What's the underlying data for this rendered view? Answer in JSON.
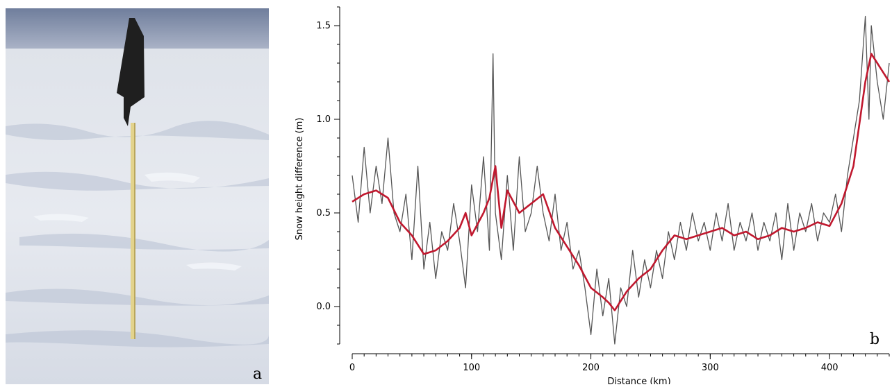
{
  "panels": {
    "a_label": "a",
    "b_label": "b"
  },
  "colors": {
    "raw_line": "#555555",
    "smooth_line": "#c0182e",
    "sky": "#7d8ba6",
    "snow": "#e4e8ef",
    "flag": "#1f1f1f",
    "pole": "#e3d38c"
  },
  "chart_data": {
    "type": "line",
    "title": "",
    "xlabel": "Distance (km)",
    "ylabel": "Snow height difference (m)",
    "xlim": [
      0,
      450
    ],
    "ylim": [
      -0.2,
      1.6
    ],
    "xticks": [
      0,
      100,
      200,
      300,
      400
    ],
    "yticks": [
      0.0,
      0.5,
      1.0,
      1.5
    ],
    "ytick_labels": [
      "0.0",
      "0.5",
      "1.0",
      "1.5"
    ],
    "x_minor_tick_step": 10,
    "y_minor_tick_step": 0.1,
    "grid": false,
    "series": [
      {
        "style": "raw",
        "x": [
          0,
          5,
          10,
          15,
          20,
          25,
          30,
          35,
          40,
          45,
          50,
          55,
          60,
          65,
          70,
          75,
          80,
          85,
          90,
          95,
          100,
          105,
          110,
          115,
          118,
          120,
          125,
          130,
          135,
          140,
          145,
          150,
          155,
          160,
          165,
          170,
          175,
          180,
          185,
          190,
          195,
          200,
          205,
          210,
          215,
          220,
          225,
          230,
          235,
          240,
          245,
          250,
          255,
          260,
          265,
          270,
          275,
          280,
          285,
          290,
          295,
          300,
          305,
          310,
          315,
          320,
          325,
          330,
          335,
          340,
          345,
          350,
          355,
          360,
          365,
          370,
          375,
          380,
          385,
          390,
          395,
          400,
          405,
          410,
          415,
          420,
          425,
          430,
          433,
          435,
          440,
          445,
          450
        ],
        "y": [
          0.7,
          0.45,
          0.85,
          0.5,
          0.75,
          0.55,
          0.9,
          0.5,
          0.4,
          0.6,
          0.25,
          0.75,
          0.2,
          0.45,
          0.15,
          0.4,
          0.3,
          0.55,
          0.35,
          0.1,
          0.65,
          0.4,
          0.8,
          0.3,
          1.35,
          0.5,
          0.25,
          0.7,
          0.3,
          0.8,
          0.4,
          0.5,
          0.75,
          0.5,
          0.35,
          0.6,
          0.3,
          0.45,
          0.2,
          0.3,
          0.1,
          -0.15,
          0.2,
          -0.05,
          0.15,
          -0.2,
          0.1,
          0.0,
          0.3,
          0.05,
          0.25,
          0.1,
          0.3,
          0.15,
          0.4,
          0.25,
          0.45,
          0.3,
          0.5,
          0.35,
          0.45,
          0.3,
          0.5,
          0.35,
          0.55,
          0.3,
          0.45,
          0.35,
          0.5,
          0.3,
          0.45,
          0.35,
          0.5,
          0.25,
          0.55,
          0.3,
          0.5,
          0.4,
          0.55,
          0.35,
          0.5,
          0.45,
          0.6,
          0.4,
          0.7,
          0.9,
          1.1,
          1.55,
          1.0,
          1.5,
          1.2,
          1.0,
          1.3
        ]
      },
      {
        "style": "smoothed",
        "x": [
          0,
          10,
          20,
          30,
          40,
          50,
          60,
          70,
          80,
          90,
          95,
          100,
          110,
          115,
          120,
          125,
          130,
          140,
          150,
          160,
          170,
          180,
          190,
          200,
          210,
          215,
          220,
          230,
          240,
          250,
          260,
          270,
          280,
          290,
          300,
          310,
          320,
          330,
          340,
          350,
          360,
          370,
          380,
          390,
          400,
          410,
          420,
          430,
          435,
          440,
          450
        ],
        "y": [
          0.56,
          0.6,
          0.62,
          0.58,
          0.45,
          0.38,
          0.28,
          0.3,
          0.35,
          0.42,
          0.5,
          0.38,
          0.5,
          0.58,
          0.75,
          0.42,
          0.62,
          0.5,
          0.55,
          0.6,
          0.42,
          0.32,
          0.22,
          0.1,
          0.05,
          0.02,
          -0.02,
          0.08,
          0.15,
          0.2,
          0.3,
          0.38,
          0.36,
          0.38,
          0.4,
          0.42,
          0.38,
          0.4,
          0.36,
          0.38,
          0.42,
          0.4,
          0.42,
          0.45,
          0.43,
          0.55,
          0.75,
          1.2,
          1.35,
          1.3,
          1.2
        ]
      }
    ]
  }
}
